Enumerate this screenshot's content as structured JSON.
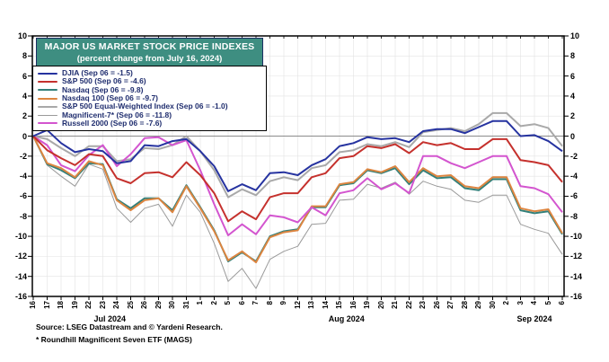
{
  "colors": {
    "title_bg": "#3E8E81",
    "title_border": "#1D2F63",
    "title_text": "#FFFFFF",
    "legend_text": "#1F2D6E",
    "axis_line": "#000000",
    "zero_line": "#8C8C8C",
    "grid_line": "#E3E3E3"
  },
  "chart_data": {
    "type": "line",
    "title": "MAJOR US MARKET STOCK PRICE INDEXES",
    "subtitle": "(percent change from July 16, 2024)",
    "source": "Source: LSEG Datastream and © Yardeni Research.",
    "footnote": "* Roundhill Magnificent Seven ETF (MAGS)",
    "xlabel": "",
    "ylabel": "percent change",
    "ylim": [
      -16,
      10
    ],
    "ytick_step": 2,
    "y_ticks": [
      10,
      8,
      6,
      4,
      2,
      0,
      -2,
      -4,
      -6,
      -8,
      -10,
      -12,
      -14,
      -16
    ],
    "grid": true,
    "legend_position": "top-left",
    "x_tick_labels": [
      "16",
      "17",
      "18",
      "19",
      "22",
      "23",
      "24",
      "25",
      "26",
      "29",
      "30",
      "31",
      "1",
      "2",
      "5",
      "6",
      "7",
      "8",
      "9",
      "12",
      "13",
      "14",
      "15",
      "16",
      "19",
      "20",
      "21",
      "22",
      "23",
      "26",
      "27",
      "28",
      "29",
      "30",
      "2",
      "3",
      "4",
      "5",
      "6"
    ],
    "months": [
      {
        "label": "Jul 2024",
        "span": [
          0,
          11
        ]
      },
      {
        "label": "Aug 2024",
        "span": [
          12,
          33
        ]
      },
      {
        "label": "Sep 2024",
        "span": [
          34,
          38
        ]
      }
    ],
    "draw_order": [
      5,
      4,
      2,
      3,
      6,
      1,
      0
    ],
    "series": [
      {
        "name": "DJIA",
        "legend": "DJIA (Sep 06 = -1.5)",
        "last_value": -1.5,
        "color": "#2633A0",
        "width": 2,
        "values": [
          0,
          0.6,
          -0.7,
          -1.6,
          -1.3,
          -1.5,
          -2.7,
          -2.5,
          -0.9,
          -1.0,
          -0.5,
          -0.3,
          -1.5,
          -3.0,
          -5.5,
          -4.8,
          -5.4,
          -3.7,
          -3.6,
          -3.9,
          -2.9,
          -2.3,
          -1.0,
          -0.7,
          -0.1,
          -0.3,
          -0.2,
          -0.6,
          0.5,
          0.7,
          0.7,
          0.3,
          0.9,
          1.5,
          1.5,
          0.0,
          0.1,
          -0.5,
          -1.5
        ]
      },
      {
        "name": "S&P 500",
        "legend": "S&P 500 (Sep 06 = -4.6)",
        "last_value": -4.6,
        "color": "#C5312D",
        "width": 2,
        "values": [
          0,
          -1.4,
          -2.2,
          -2.9,
          -1.8,
          -2.0,
          -4.2,
          -4.7,
          -3.7,
          -3.6,
          -4.1,
          -2.6,
          -3.9,
          -5.7,
          -8.5,
          -7.5,
          -8.3,
          -6.1,
          -5.7,
          -5.7,
          -4.1,
          -3.7,
          -2.2,
          -2.0,
          -1.0,
          -1.2,
          -0.8,
          -1.7,
          -0.6,
          -0.9,
          -0.7,
          -1.3,
          -1.3,
          -0.3,
          -0.3,
          -2.4,
          -2.6,
          -2.9,
          -4.6
        ]
      },
      {
        "name": "Nasdaq",
        "legend": "Nasdaq (Sep 06 = -9.8)",
        "last_value": -9.8,
        "color": "#33807A",
        "width": 2,
        "values": [
          0,
          -2.8,
          -3.4,
          -4.2,
          -2.7,
          -2.8,
          -6.3,
          -7.2,
          -6.2,
          -6.2,
          -7.4,
          -4.9,
          -7.1,
          -9.4,
          -12.5,
          -11.6,
          -12.5,
          -10.0,
          -9.5,
          -9.3,
          -7.1,
          -7.1,
          -4.9,
          -4.7,
          -3.4,
          -3.7,
          -3.2,
          -4.8,
          -3.4,
          -4.2,
          -4.1,
          -5.2,
          -5.4,
          -4.3,
          -4.3,
          -7.4,
          -7.7,
          -7.5,
          -9.8
        ]
      },
      {
        "name": "Nasdaq 100",
        "legend": "Nasdaq 100 (Sep 06 = -9.7)",
        "last_value": -9.7,
        "color": "#DD8540",
        "width": 2,
        "values": [
          0,
          -2.7,
          -3.2,
          -4.1,
          -2.5,
          -2.9,
          -6.4,
          -7.4,
          -6.4,
          -6.2,
          -7.6,
          -5.0,
          -7.2,
          -9.5,
          -12.4,
          -11.5,
          -12.6,
          -10.1,
          -9.6,
          -9.4,
          -7.0,
          -7.0,
          -4.8,
          -4.6,
          -3.3,
          -3.6,
          -3.0,
          -4.6,
          -3.2,
          -4.0,
          -3.9,
          -5.0,
          -5.2,
          -4.1,
          -4.1,
          -7.2,
          -7.5,
          -7.3,
          -9.7
        ]
      },
      {
        "name": "S&P 500 Equal-Weighted Index",
        "legend": "S&P 500 Equal-Weighted Index (Sep 06 = -1.0)",
        "last_value": -1.0,
        "color": "#A9A9A9",
        "width": 2,
        "values": [
          0,
          -0.3,
          -1.2,
          -2.0,
          -1.0,
          -1.0,
          -2.5,
          -2.3,
          -1.2,
          -1.3,
          -0.9,
          0.0,
          -1.5,
          -3.4,
          -6.1,
          -5.3,
          -5.9,
          -4.5,
          -4.1,
          -4.4,
          -3.2,
          -2.9,
          -1.6,
          -1.4,
          -0.8,
          -1.0,
          -0.6,
          -1.1,
          0.4,
          0.6,
          0.8,
          0.5,
          1.2,
          2.3,
          2.3,
          1.0,
          1.2,
          0.8,
          -1.0
        ]
      },
      {
        "name": "Magnificent-7*",
        "legend": "Magnificent-7* (Sep 06 = -11.8)",
        "last_value": -11.8,
        "color": "#9A9A9A",
        "width": 1,
        "values": [
          0,
          -2.9,
          -4.0,
          -5.0,
          -2.8,
          -3.3,
          -7.2,
          -8.6,
          -7.2,
          -6.8,
          -9.0,
          -5.9,
          -7.6,
          -10.7,
          -14.5,
          -13.2,
          -15.2,
          -12.3,
          -11.5,
          -11.0,
          -8.8,
          -8.7,
          -6.4,
          -6.3,
          -4.8,
          -5.2,
          -4.6,
          -5.8,
          -4.5,
          -5.0,
          -5.3,
          -6.4,
          -6.6,
          -5.9,
          -5.9,
          -8.8,
          -9.3,
          -9.7,
          -11.8
        ]
      },
      {
        "name": "Russell 2000",
        "legend": "Russell 2000 (Sep 06 = -7.6)",
        "last_value": -7.6,
        "color": "#D355CF",
        "width": 2,
        "values": [
          0,
          -0.9,
          -2.9,
          -3.5,
          -1.9,
          -0.9,
          -3.0,
          -1.8,
          -0.2,
          -0.1,
          -0.9,
          -0.4,
          -3.4,
          -6.8,
          -9.9,
          -8.8,
          -9.8,
          -7.9,
          -8.1,
          -8.6,
          -7.1,
          -7.9,
          -5.7,
          -5.4,
          -4.2,
          -5.3,
          -4.7,
          -5.7,
          -2.0,
          -2.0,
          -2.7,
          -3.2,
          -2.6,
          -2.0,
          -2.0,
          -5.0,
          -5.2,
          -5.8,
          -7.6
        ]
      }
    ]
  }
}
